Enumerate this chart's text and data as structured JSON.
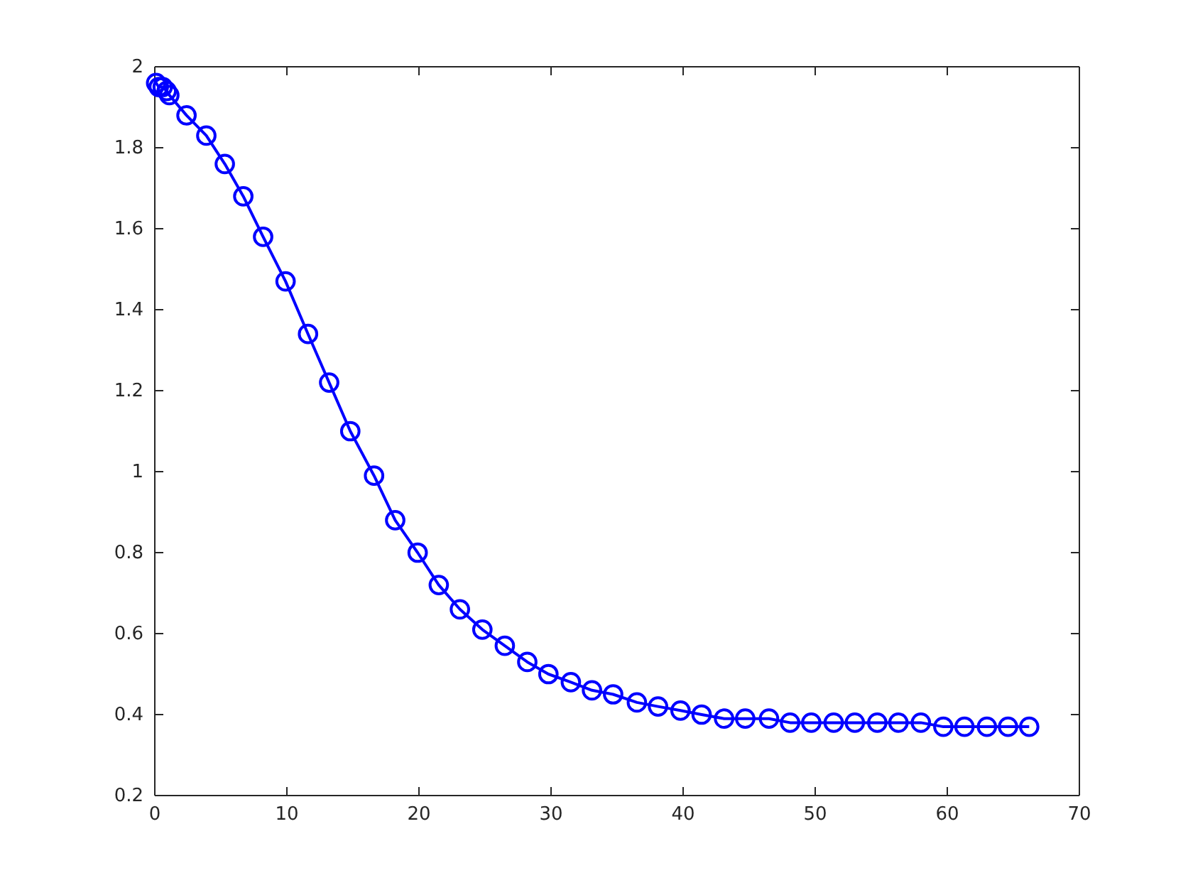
{
  "chart_data": {
    "type": "line",
    "x": [
      0.1,
      0.3,
      0.6,
      0.9,
      1.1,
      2.4,
      3.9,
      5.3,
      6.7,
      8.2,
      9.9,
      11.6,
      13.2,
      14.8,
      16.6,
      18.2,
      19.9,
      21.5,
      23.1,
      24.8,
      26.5,
      28.2,
      29.8,
      31.5,
      33.1,
      34.7,
      36.5,
      38.1,
      39.8,
      41.4,
      43.1,
      44.7,
      46.5,
      48.1,
      49.7,
      51.4,
      53.0,
      54.7,
      56.3,
      58.0,
      59.7,
      61.3,
      63.0,
      64.6,
      66.2
    ],
    "series": [
      {
        "color": "#0000ff",
        "values": [
          1.96,
          1.95,
          1.95,
          1.94,
          1.93,
          1.88,
          1.83,
          1.76,
          1.68,
          1.58,
          1.47,
          1.34,
          1.22,
          1.1,
          0.99,
          0.88,
          0.8,
          0.72,
          0.66,
          0.61,
          0.57,
          0.53,
          0.5,
          0.48,
          0.46,
          0.45,
          0.43,
          0.42,
          0.41,
          0.4,
          0.39,
          0.39,
          0.39,
          0.38,
          0.38,
          0.38,
          0.38,
          0.38,
          0.38,
          0.38,
          0.37,
          0.37,
          0.37,
          0.37,
          0.37
        ]
      }
    ],
    "xlim": [
      0,
      70
    ],
    "xticks": [
      0,
      10,
      20,
      30,
      40,
      50,
      60,
      70
    ],
    "ylim": [
      0.2,
      2
    ],
    "yticks": [
      0.2,
      0.4,
      0.6,
      0.8,
      1,
      1.2,
      1.4,
      1.6,
      1.8,
      2
    ],
    "marker": "circle",
    "line_style": "solid",
    "grid": false
  }
}
